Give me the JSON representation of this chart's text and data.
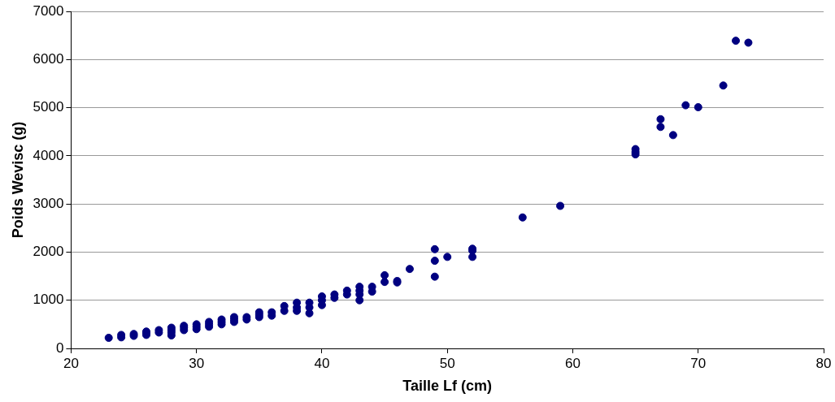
{
  "chart_data": {
    "type": "scatter",
    "xlabel": "Taille Lf (cm)",
    "ylabel": "Poids Wevisc (g)",
    "xlim": [
      20,
      80
    ],
    "xticks": [
      20,
      30,
      40,
      50,
      60,
      70,
      80
    ],
    "ylim": [
      0,
      7000
    ],
    "yticks": [
      0,
      1000,
      2000,
      3000,
      4000,
      5000,
      6000,
      7000
    ],
    "grid": "y",
    "legend": false,
    "marker": "circle",
    "series": [
      {
        "color": "#000080",
        "x": [
          23,
          24,
          24,
          25,
          25,
          26,
          26,
          26,
          27,
          27,
          28,
          28,
          28,
          28,
          29,
          29,
          29,
          30,
          30,
          30,
          31,
          31,
          31,
          32,
          32,
          32,
          33,
          33,
          33,
          34,
          34,
          35,
          35,
          35,
          36,
          36,
          37,
          37,
          38,
          38,
          38,
          39,
          39,
          39,
          40,
          40,
          40,
          41,
          41,
          42,
          42,
          43,
          43,
          43,
          43,
          44,
          44,
          45,
          45,
          46,
          46,
          47,
          49,
          49,
          49,
          50,
          52,
          52,
          52,
          56,
          59,
          65,
          65,
          65,
          67,
          67,
          68,
          69,
          70,
          72,
          73,
          74
        ],
        "values": [
          220,
          230,
          280,
          260,
          300,
          280,
          320,
          350,
          330,
          380,
          270,
          330,
          380,
          430,
          380,
          430,
          470,
          400,
          450,
          500,
          450,
          500,
          550,
          500,
          550,
          600,
          550,
          600,
          650,
          600,
          650,
          650,
          700,
          750,
          680,
          750,
          780,
          880,
          780,
          850,
          950,
          730,
          850,
          950,
          900,
          1000,
          1080,
          1050,
          1120,
          1120,
          1200,
          1000,
          1120,
          1200,
          1280,
          1180,
          1280,
          1380,
          1520,
          1370,
          1400,
          1650,
          1490,
          1820,
          2060,
          1900,
          1900,
          2030,
          2070,
          2720,
          2960,
          4030,
          4080,
          4140,
          4600,
          4760,
          4430,
          5050,
          5010,
          5460,
          6390,
          6350
        ]
      }
    ]
  }
}
